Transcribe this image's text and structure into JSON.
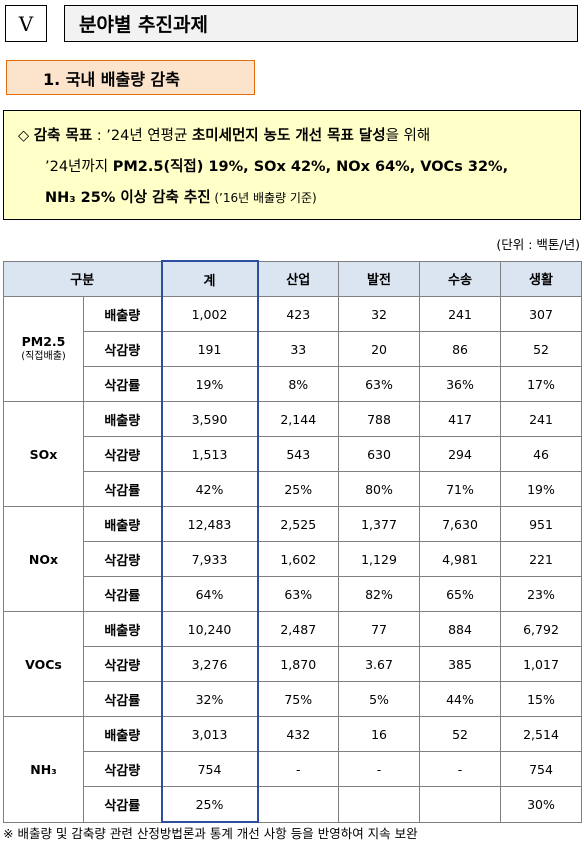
{
  "header": {
    "roman": "V",
    "chapter": "분야별 추진과제"
  },
  "section": {
    "title": "1. 국내 배출량 감축"
  },
  "goal": {
    "bullet": "◇",
    "label": "감축 목표",
    "colon": " : ",
    "line1_pre": "’24년 연평균 ",
    "line1_bold": "초미세먼지 농도 개선 목표 달성",
    "line1_post": "을 위해",
    "line2_pre": "’24년까지 ",
    "line2_bold": "PM2.5(직접) 19%, SOx 42%, NOx 64%, VOCs 32%,",
    "line3_bold": "NH₃ 25% 이상 감축 추진",
    "line3_post": " (’16년 배출량 기준)"
  },
  "unit": "(단위 : 백톤/년)",
  "table": {
    "header": {
      "category": "구분",
      "total": "계",
      "c1": "산업",
      "c2": "발전",
      "c3": "수송",
      "c4": "생활"
    },
    "groups": [
      {
        "name": "PM2.5",
        "sub": "(직접배출)",
        "rows": [
          {
            "label": "배출량",
            "total": "1,002",
            "c1": "423",
            "c2": "32",
            "c3": "241",
            "c4": "307"
          },
          {
            "label": "삭감량",
            "total": "191",
            "c1": "33",
            "c2": "20",
            "c3": "86",
            "c4": "52"
          },
          {
            "label": "삭감률",
            "total": "19%",
            "c1": "8%",
            "c2": "63%",
            "c3": "36%",
            "c4": "17%"
          }
        ]
      },
      {
        "name": "SOx",
        "sub": "",
        "rows": [
          {
            "label": "배출량",
            "total": "3,590",
            "c1": "2,144",
            "c2": "788",
            "c3": "417",
            "c4": "241"
          },
          {
            "label": "삭감량",
            "total": "1,513",
            "c1": "543",
            "c2": "630",
            "c3": "294",
            "c4": "46"
          },
          {
            "label": "삭감률",
            "total": "42%",
            "c1": "25%",
            "c2": "80%",
            "c3": "71%",
            "c4": "19%"
          }
        ]
      },
      {
        "name": "NOx",
        "sub": "",
        "rows": [
          {
            "label": "배출량",
            "total": "12,483",
            "c1": "2,525",
            "c2": "1,377",
            "c3": "7,630",
            "c4": "951"
          },
          {
            "label": "삭감량",
            "total": "7,933",
            "c1": "1,602",
            "c2": "1,129",
            "c3": "4,981",
            "c4": "221"
          },
          {
            "label": "삭감률",
            "total": "64%",
            "c1": "63%",
            "c2": "82%",
            "c3": "65%",
            "c4": "23%"
          }
        ]
      },
      {
        "name": "VOCs",
        "sub": "",
        "rows": [
          {
            "label": "배출량",
            "total": "10,240",
            "c1": "2,487",
            "c2": "77",
            "c3": "884",
            "c4": "6,792"
          },
          {
            "label": "삭감량",
            "total": "3,276",
            "c1": "1,870",
            "c2": "3.67",
            "c3": "385",
            "c4": "1,017"
          },
          {
            "label": "삭감률",
            "total": "32%",
            "c1": "75%",
            "c2": "5%",
            "c3": "44%",
            "c4": "15%"
          }
        ]
      },
      {
        "name": "NH₃",
        "sub": "",
        "rows": [
          {
            "label": "배출량",
            "total": "3,013",
            "c1": "432",
            "c2": "16",
            "c3": "52",
            "c4": "2,514"
          },
          {
            "label": "삭감량",
            "total": "754",
            "c1": "-",
            "c2": "-",
            "c3": "-",
            "c4": "754"
          },
          {
            "label": "삭감률",
            "total": "25%",
            "c1": "",
            "c2": "",
            "c3": "",
            "c4": "30%"
          }
        ]
      }
    ]
  },
  "note": "※ 배출량 및 감축량 관련 산정방법론과 통계 개선 사항 등을 반영하여 지속 보완"
}
